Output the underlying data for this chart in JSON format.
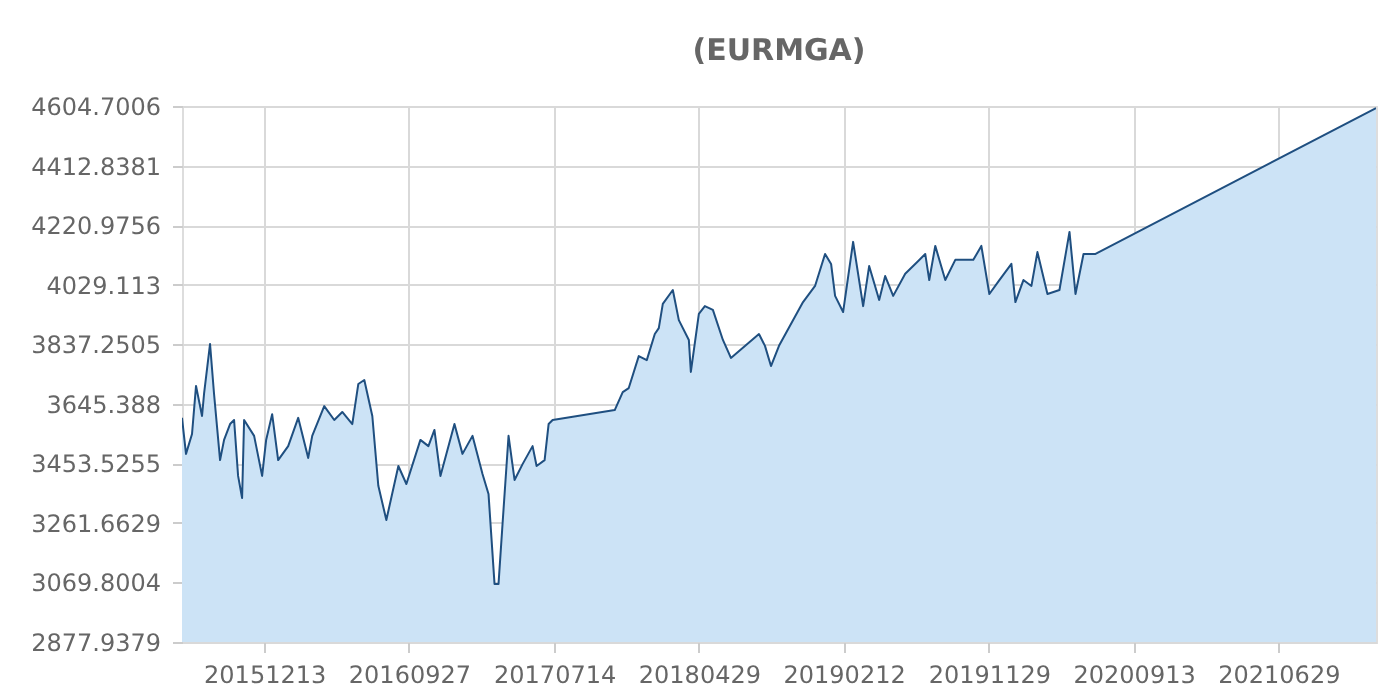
{
  "chart_data": {
    "type": "area",
    "title": "(EURMGA)",
    "x": [
      "2015-07-02",
      "2015-07-10",
      "2015-07-22",
      "2015-07-30",
      "2015-08-11",
      "2015-08-15",
      "2015-08-27",
      "2015-09-04",
      "2015-09-16",
      "2015-09-24",
      "2015-10-06",
      "2015-10-14",
      "2015-10-22",
      "2015-10-30",
      "2015-11-03",
      "2015-11-23",
      "2015-12-09",
      "2015-12-17",
      "2015-12-29",
      "2016-01-10",
      "2016-01-30",
      "2016-02-19",
      "2016-03-10",
      "2016-03-18",
      "2016-04-11",
      "2016-05-01",
      "2016-05-17",
      "2016-06-06",
      "2016-06-18",
      "2016-06-30",
      "2016-07-16",
      "2016-07-28",
      "2016-08-13",
      "2016-09-06",
      "2016-09-22",
      "2016-10-20",
      "2016-11-05",
      "2016-11-17",
      "2016-11-29",
      "2016-12-27",
      "2017-01-12",
      "2017-02-01",
      "2017-02-21",
      "2017-03-05",
      "2017-03-17",
      "2017-03-25",
      "2017-04-02",
      "2017-04-14",
      "2017-04-26",
      "2017-05-12",
      "2017-06-01",
      "2017-06-09",
      "2017-06-25",
      "2017-07-03",
      "2017-07-11",
      "2017-11-12",
      "2017-11-28",
      "2017-12-10",
      "2017-12-30",
      "2018-01-15",
      "2018-01-31",
      "2018-02-08",
      "2018-02-16",
      "2018-03-08",
      "2018-03-20",
      "2018-04-09",
      "2018-04-13",
      "2018-04-29",
      "2018-05-11",
      "2018-05-27",
      "2018-06-16",
      "2018-07-02",
      "2018-08-27",
      "2018-09-08",
      "2018-09-20",
      "2018-10-06",
      "2018-11-23",
      "2018-12-17",
      "2019-01-06",
      "2019-01-18",
      "2019-01-26",
      "2019-02-11",
      "2019-03-03",
      "2019-03-23",
      "2019-04-04",
      "2019-04-24",
      "2019-05-06",
      "2019-05-22",
      "2019-06-15",
      "2019-07-09",
      "2019-07-25",
      "2019-08-02",
      "2019-08-14",
      "2019-09-03",
      "2019-09-23",
      "2019-10-29",
      "2019-11-14",
      "2019-11-30",
      "2019-12-20",
      "2020-01-13",
      "2020-01-21",
      "2020-02-06",
      "2020-02-22",
      "2020-03-05",
      "2020-03-25",
      "2020-04-18",
      "2020-05-08",
      "2020-05-20",
      "2020-06-05",
      "2020-06-29",
      "2022-01-10"
    ],
    "series": [
      {
        "color": "#1f4f80",
        "values": [
          3600,
          3484,
          3548,
          3703,
          3606,
          3677,
          3838,
          3677,
          3464,
          3529,
          3580,
          3593,
          3413,
          3342,
          3593,
          3542,
          3413,
          3529,
          3612,
          3464,
          3509,
          3600,
          3471,
          3542,
          3638,
          3593,
          3619,
          3580,
          3709,
          3722,
          3606,
          3381,
          3271,
          3445,
          3387,
          3529,
          3509,
          3561,
          3413,
          3580,
          3484,
          3542,
          3419,
          3355,
          3065,
          3065,
          3258,
          3542,
          3400,
          3451,
          3509,
          3445,
          3464,
          3580,
          3593,
          3625,
          3683,
          3696,
          3799,
          3786,
          3870,
          3889,
          3967,
          4012,
          3915,
          3851,
          3748,
          3935,
          3960,
          3948,
          3851,
          3793,
          3870,
          3832,
          3767,
          3832,
          3973,
          4025,
          4128,
          4096,
          3993,
          3941,
          4167,
          3960,
          4089,
          3980,
          4057,
          3993,
          4064,
          4102,
          4128,
          4044,
          4154,
          4044,
          4109,
          4109,
          4154,
          3999,
          4044,
          4096,
          3973,
          4044,
          4025,
          4134,
          3999,
          4012,
          4199,
          3999,
          4128,
          4128,
          4598
        ]
      }
    ],
    "xlim": [
      "2015-07-02",
      "2022-01-10"
    ],
    "xticks": [
      {
        "value": "2015-12-13",
        "label": "20151213"
      },
      {
        "value": "2016-09-27",
        "label": "20160927"
      },
      {
        "value": "2017-07-14",
        "label": "20170714"
      },
      {
        "value": "2018-04-29",
        "label": "20180429"
      },
      {
        "value": "2019-02-12",
        "label": "20190212"
      },
      {
        "value": "2019-11-29",
        "label": "20191129"
      },
      {
        "value": "2020-09-13",
        "label": "20200913"
      },
      {
        "value": "2021-06-29",
        "label": "20210629"
      }
    ],
    "ylim": [
      2877.9379,
      4604.7006
    ],
    "yticks": [
      2877.9379,
      3069.8004,
      3261.6629,
      3453.5255,
      3645.388,
      3837.2505,
      4029.113,
      4220.9756,
      4412.8381,
      4604.7006
    ],
    "grid": true,
    "marker": "none",
    "line_style": "solid"
  }
}
